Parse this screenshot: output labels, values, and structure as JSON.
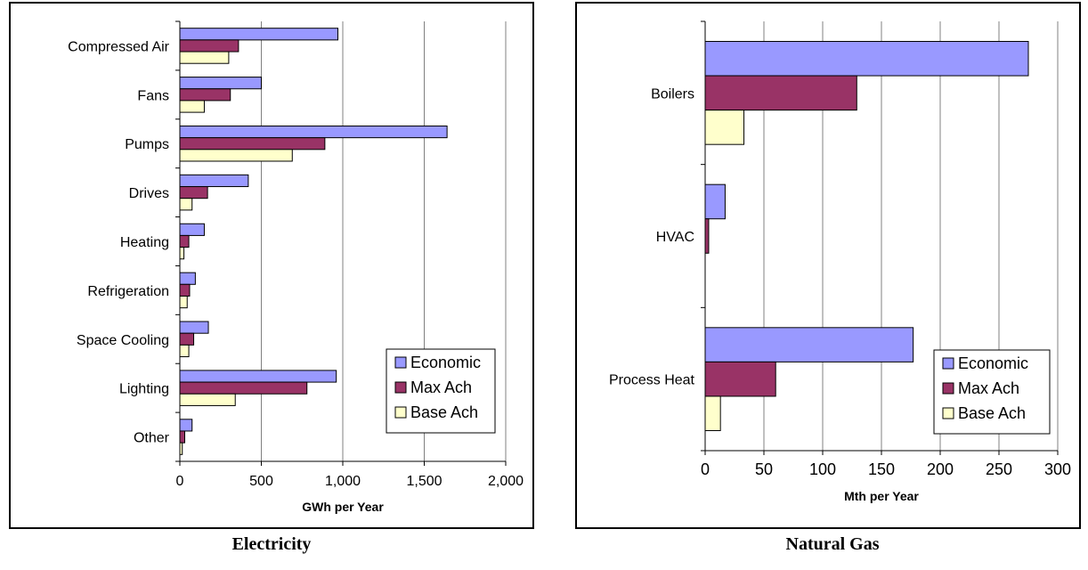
{
  "captions": {
    "left": "Electricity",
    "right": "Natural Gas"
  },
  "legend_labels": [
    "Economic",
    "Max Ach",
    "Base Ach"
  ],
  "colors": {
    "Economic": "#9999ff",
    "Max Ach": "#993366",
    "Base Ach": "#ffffcc"
  },
  "chart_data": [
    {
      "type": "bar",
      "orientation": "horizontal",
      "categories": [
        "Compressed Air",
        "Fans",
        "Pumps",
        "Drives",
        "Heating",
        "Refrigeration",
        "Space Cooling",
        "Lighting",
        "Other"
      ],
      "series": [
        {
          "name": "Economic",
          "values": [
            970,
            500,
            1640,
            420,
            150,
            95,
            175,
            960,
            75
          ]
        },
        {
          "name": "Max Ach",
          "values": [
            360,
            310,
            890,
            170,
            55,
            60,
            85,
            780,
            30
          ]
        },
        {
          "name": "Base Ach",
          "values": [
            300,
            150,
            690,
            75,
            25,
            45,
            55,
            340,
            15
          ]
        }
      ],
      "xlabel": "GWh per Year",
      "xlim": [
        0,
        2000
      ],
      "xticks": [
        0,
        500,
        1000,
        1500,
        2000
      ],
      "xtick_labels": [
        "0",
        "500",
        "1,000",
        "1,500",
        "2,000"
      ],
      "grid": "vertical",
      "legend": "bottom-right"
    },
    {
      "type": "bar",
      "orientation": "horizontal",
      "categories": [
        "Boilers",
        "HVAC",
        "Process Heat"
      ],
      "series": [
        {
          "name": "Economic",
          "values": [
            275,
            17,
            177
          ]
        },
        {
          "name": "Max Ach",
          "values": [
            129,
            3,
            60
          ]
        },
        {
          "name": "Base Ach",
          "values": [
            33,
            0,
            13
          ]
        }
      ],
      "xlabel": "Mth per Year",
      "xlim": [
        0,
        300
      ],
      "xticks": [
        0,
        50,
        100,
        150,
        200,
        250,
        300
      ],
      "xtick_labels": [
        "0",
        "50",
        "100",
        "150",
        "200",
        "250",
        "300"
      ],
      "grid": "vertical",
      "legend": "bottom-right"
    }
  ]
}
